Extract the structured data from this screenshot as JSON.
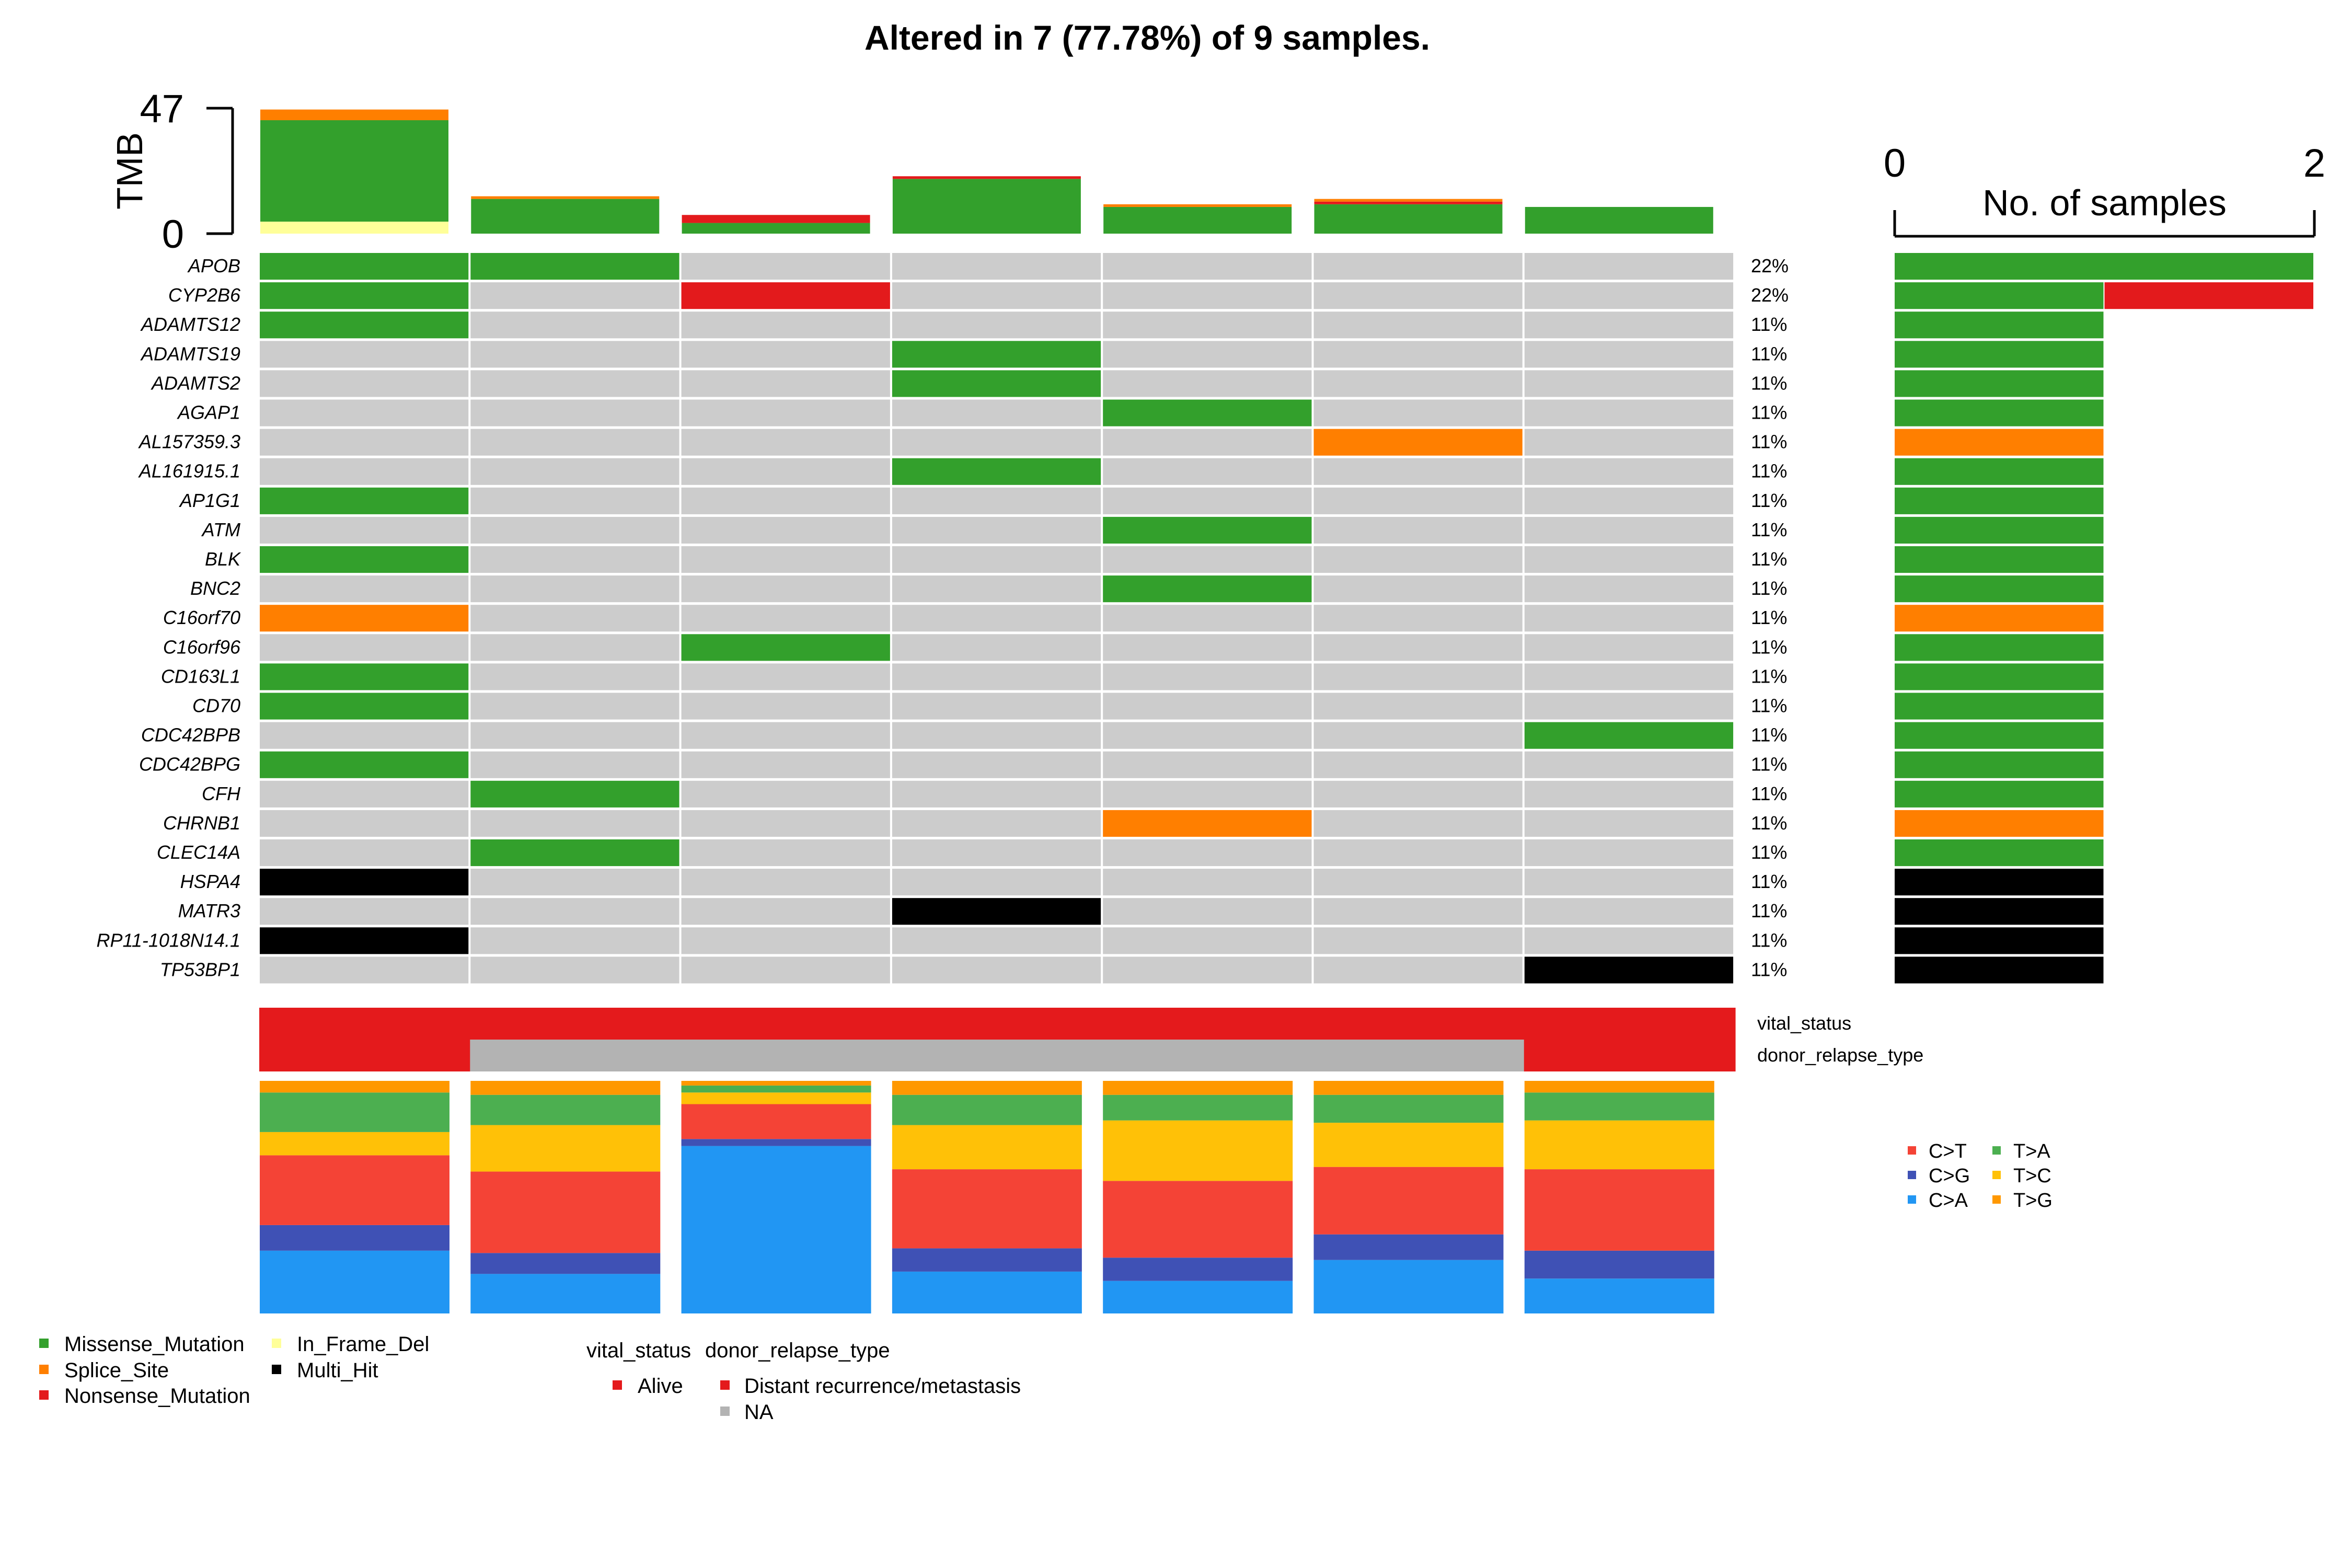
{
  "title": "Altered in 7 (77.78%) of 9 samples.",
  "colors": {
    "Missense_Mutation": "#33A02C",
    "Splice_Site": "#FF7F00",
    "Nonsense_Mutation": "#E31A1C",
    "In_Frame_Del": "#FFFF99",
    "Multi_Hit": "#000000",
    "none": "#CCCCCC",
    "Alive": "#E41A1C",
    "Distant recurrence/metastasis": "#E41A1C",
    "NA": "#B3B3B3",
    "C>T": "#F44336",
    "C>G": "#3F51B5",
    "C>A": "#2196F3",
    "T>A": "#4CAF50",
    "T>C": "#FFC107",
    "T>G": "#FF9800"
  },
  "chart_data": [
    {
      "type": "bar",
      "name": "tmb",
      "ylabel": "TMB",
      "yticks": [
        "0",
        "47"
      ],
      "ylim": [
        0,
        47
      ],
      "samples": 7,
      "series": [
        {
          "name": "In_Frame_Del",
          "values": [
            4.5,
            0,
            0,
            0,
            0,
            0,
            0
          ]
        },
        {
          "name": "Missense_Mutation",
          "values": [
            38,
            13,
            4,
            20.5,
            10,
            11,
            10
          ]
        },
        {
          "name": "Nonsense_Mutation",
          "values": [
            0,
            0,
            3,
            1,
            0,
            1,
            0
          ]
        },
        {
          "name": "Splice_Site",
          "values": [
            4,
            1,
            0,
            0,
            1,
            1,
            0
          ]
        }
      ]
    },
    {
      "type": "heatmap",
      "name": "oncoplot",
      "genes": [
        "APOB",
        "CYP2B6",
        "ADAMTS12",
        "ADAMTS19",
        "ADAMTS2",
        "AGAP1",
        "AL157359.3",
        "AL161915.1",
        "AP1G1",
        "ATM",
        "BLK",
        "BNC2",
        "C16orf70",
        "C16orf96",
        "CD163L1",
        "CD70",
        "CDC42BPB",
        "CDC42BPG",
        "CFH",
        "CHRNB1",
        "CLEC14A",
        "HSPA4",
        "MATR3",
        "RP11-1018N14.1",
        "TP53BP1"
      ],
      "percents": [
        "22%",
        "22%",
        "11%",
        "11%",
        "11%",
        "11%",
        "11%",
        "11%",
        "11%",
        "11%",
        "11%",
        "11%",
        "11%",
        "11%",
        "11%",
        "11%",
        "11%",
        "11%",
        "11%",
        "11%",
        "11%",
        "11%",
        "11%",
        "11%",
        "11%"
      ],
      "matrix": [
        [
          "Missense_Mutation",
          "Missense_Mutation",
          "",
          "",
          "",
          "",
          ""
        ],
        [
          "Missense_Mutation",
          "",
          "Nonsense_Mutation",
          "",
          "",
          "",
          ""
        ],
        [
          "Missense_Mutation",
          "",
          "",
          "",
          "",
          "",
          ""
        ],
        [
          "",
          "",
          "",
          "Missense_Mutation",
          "",
          "",
          ""
        ],
        [
          "",
          "",
          "",
          "Missense_Mutation",
          "",
          "",
          ""
        ],
        [
          "",
          "",
          "",
          "",
          "Missense_Mutation",
          "",
          ""
        ],
        [
          "",
          "",
          "",
          "",
          "",
          "Splice_Site",
          ""
        ],
        [
          "",
          "",
          "",
          "Missense_Mutation",
          "",
          "",
          ""
        ],
        [
          "Missense_Mutation",
          "",
          "",
          "",
          "",
          "",
          ""
        ],
        [
          "",
          "",
          "",
          "",
          "Missense_Mutation",
          "",
          ""
        ],
        [
          "Missense_Mutation",
          "",
          "",
          "",
          "",
          "",
          ""
        ],
        [
          "",
          "",
          "",
          "",
          "Missense_Mutation",
          "",
          ""
        ],
        [
          "Splice_Site",
          "",
          "",
          "",
          "",
          "",
          ""
        ],
        [
          "",
          "",
          "Missense_Mutation",
          "",
          "",
          "",
          ""
        ],
        [
          "Missense_Mutation",
          "",
          "",
          "",
          "",
          "",
          ""
        ],
        [
          "Missense_Mutation",
          "",
          "",
          "",
          "",
          "",
          ""
        ],
        [
          "",
          "",
          "",
          "",
          "",
          "",
          "Missense_Mutation"
        ],
        [
          "Missense_Mutation",
          "",
          "",
          "",
          "",
          "",
          ""
        ],
        [
          "",
          "Missense_Mutation",
          "",
          "",
          "",
          "",
          ""
        ],
        [
          "",
          "",
          "",
          "",
          "Splice_Site",
          "",
          ""
        ],
        [
          "",
          "Missense_Mutation",
          "",
          "",
          "",
          "",
          ""
        ],
        [
          "Multi_Hit",
          "",
          "",
          "",
          "",
          "",
          ""
        ],
        [
          "",
          "",
          "",
          "Multi_Hit",
          "",
          "",
          ""
        ],
        [
          "Multi_Hit",
          "",
          "",
          "",
          "",
          "",
          ""
        ],
        [
          "",
          "",
          "",
          "",
          "",
          "",
          "Multi_Hit"
        ]
      ]
    },
    {
      "type": "bar",
      "name": "gene-counts",
      "xlabel": "No. of samples",
      "xticks": [
        "0",
        "2"
      ],
      "xlim": [
        0,
        2
      ],
      "series": [
        {
          "name": "Missense_Mutation",
          "values": [
            2,
            1,
            1,
            1,
            1,
            1,
            0,
            1,
            1,
            1,
            1,
            1,
            0,
            1,
            1,
            1,
            1,
            1,
            1,
            0,
            1,
            0,
            0,
            0,
            0
          ]
        },
        {
          "name": "Nonsense_Mutation",
          "values": [
            0,
            1,
            0,
            0,
            0,
            0,
            0,
            0,
            0,
            0,
            0,
            0,
            0,
            0,
            0,
            0,
            0,
            0,
            0,
            0,
            0,
            0,
            0,
            0,
            0
          ]
        },
        {
          "name": "Splice_Site",
          "values": [
            0,
            0,
            0,
            0,
            0,
            0,
            1,
            0,
            0,
            0,
            0,
            0,
            1,
            0,
            0,
            0,
            0,
            0,
            0,
            1,
            0,
            0,
            0,
            0,
            0
          ]
        },
        {
          "name": "Multi_Hit",
          "values": [
            0,
            0,
            0,
            0,
            0,
            0,
            0,
            0,
            0,
            0,
            0,
            0,
            0,
            0,
            0,
            0,
            0,
            0,
            0,
            0,
            0,
            1,
            1,
            1,
            1
          ]
        }
      ]
    },
    {
      "type": "heatmap",
      "name": "clinical",
      "tracks": [
        {
          "label": "vital_status",
          "values": [
            "Alive",
            "Alive",
            "Alive",
            "Alive",
            "Alive",
            "Alive",
            "Alive"
          ]
        },
        {
          "label": "donor_relapse_type",
          "values": [
            "Distant recurrence/metastasis",
            "NA",
            "NA",
            "NA",
            "NA",
            "NA",
            "Distant recurrence/metastasis"
          ]
        }
      ]
    },
    {
      "type": "bar",
      "name": "titv",
      "stacked_fraction": true,
      "series": [
        {
          "name": "C>A",
          "values": [
            0.27,
            0.17,
            0.72,
            0.18,
            0.14,
            0.23,
            0.15
          ]
        },
        {
          "name": "C>G",
          "values": [
            0.11,
            0.09,
            0.03,
            0.1,
            0.1,
            0.11,
            0.12
          ]
        },
        {
          "name": "C>T",
          "values": [
            0.3,
            0.35,
            0.15,
            0.34,
            0.33,
            0.29,
            0.35
          ]
        },
        {
          "name": "T>C",
          "values": [
            0.1,
            0.2,
            0.05,
            0.19,
            0.26,
            0.19,
            0.21
          ]
        },
        {
          "name": "T>A",
          "values": [
            0.17,
            0.13,
            0.03,
            0.13,
            0.11,
            0.12,
            0.12
          ]
        },
        {
          "name": "T>G",
          "values": [
            0.05,
            0.06,
            0.02,
            0.06,
            0.06,
            0.06,
            0.05
          ]
        }
      ]
    }
  ],
  "legends": {
    "variant_types": [
      "Missense_Mutation",
      "Splice_Site",
      "Nonsense_Mutation",
      "In_Frame_Del",
      "Multi_Hit"
    ],
    "vital_status": {
      "title": "vital_status",
      "items": [
        "Alive"
      ]
    },
    "donor_relapse_type": {
      "title": "donor_relapse_type",
      "items": [
        "Distant recurrence/metastasis",
        "NA"
      ]
    },
    "titv": [
      "C>T",
      "C>G",
      "C>A",
      "T>A",
      "T>C",
      "T>G"
    ]
  }
}
